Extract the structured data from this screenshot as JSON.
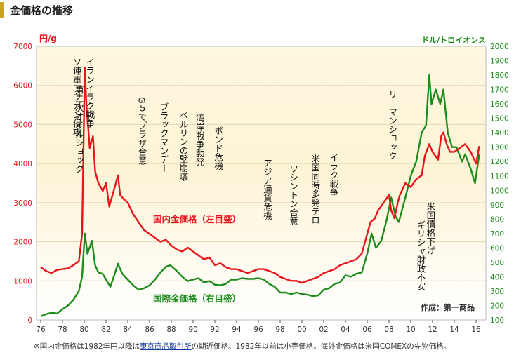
{
  "header": {
    "title": "金価格の推移"
  },
  "footnote": {
    "pre": "※国内金価格は1982年円以降は",
    "link": "東京商品取引所",
    "post": "の期近価格。1982年以前は小売価格。海外金価格は米国COMEXの先物価格。"
  },
  "colors": {
    "domestic": "#e8141c",
    "international": "#1b8c1b",
    "accent": "#c9a227"
  },
  "chart_data": {
    "type": "line",
    "left_axis": {
      "unit": "円/g",
      "min": 0,
      "max": 7000,
      "ticks": [
        "0",
        "1000",
        "2000",
        "3000",
        "4000",
        "5000",
        "6000",
        "7000"
      ]
    },
    "right_axis": {
      "unit": "ドル/トロイオンス",
      "min": 100,
      "max": 2000,
      "ticks": [
        "100",
        "200",
        "300",
        "400",
        "500",
        "600",
        "700",
        "800",
        "900",
        "1000",
        "1100",
        "1200",
        "1300",
        "1400",
        "1500",
        "1600",
        "1700",
        "1800",
        "1900",
        "2000"
      ]
    },
    "x_ticks": [
      "76",
      "78",
      "80",
      "82",
      "84",
      "86",
      "88",
      "90",
      "92",
      "94",
      "96",
      "98",
      "00",
      "02",
      "04",
      "06",
      "08",
      "10",
      "12",
      "14",
      "16"
    ],
    "series": [
      {
        "name": "国内金価格（左目盛）",
        "axis": "left",
        "color": "#e8141c",
        "x": [
          1976.0,
          1976.5,
          1977.0,
          1977.5,
          1978.0,
          1978.5,
          1979.0,
          1979.5,
          1979.8,
          1980.05,
          1980.2,
          1980.5,
          1980.8,
          1981.0,
          1981.3,
          1981.7,
          1982.0,
          1982.3,
          1982.6,
          1982.9,
          1983.1,
          1983.3,
          1983.6,
          1984.0,
          1984.5,
          1985.0,
          1985.5,
          1986.0,
          1986.5,
          1987.0,
          1987.5,
          1988.0,
          1988.5,
          1989.0,
          1989.5,
          1990.0,
          1990.5,
          1991.0,
          1991.5,
          1992.0,
          1992.5,
          1993.0,
          1993.5,
          1994.0,
          1994.5,
          1995.0,
          1995.5,
          1996.0,
          1996.5,
          1997.0,
          1997.5,
          1998.0,
          1998.5,
          1999.0,
          1999.5,
          2000.0,
          2000.5,
          2001.0,
          2001.5,
          2002.0,
          2002.5,
          2003.0,
          2003.5,
          2004.0,
          2004.5,
          2005.0,
          2005.5,
          2006.0,
          2006.3,
          2006.7,
          2007.0,
          2007.5,
          2008.0,
          2008.2,
          2008.5,
          2008.8,
          2009.0,
          2009.5,
          2010.0,
          2010.5,
          2011.0,
          2011.3,
          2011.7,
          2012.0,
          2012.5,
          2012.8,
          2013.0,
          2013.3,
          2013.6,
          2014.0,
          2014.5,
          2015.0,
          2015.5,
          2016.0,
          2016.3
        ],
        "values": [
          1350,
          1250,
          1200,
          1280,
          1300,
          1320,
          1400,
          1500,
          2200,
          6450,
          5500,
          4400,
          4700,
          3800,
          3500,
          3300,
          3500,
          2900,
          3200,
          3500,
          3700,
          3200,
          3100,
          3000,
          2700,
          2500,
          2300,
          2200,
          2100,
          2000,
          2050,
          1900,
          1800,
          1750,
          1850,
          1750,
          1650,
          1550,
          1600,
          1400,
          1450,
          1350,
          1300,
          1300,
          1250,
          1200,
          1250,
          1300,
          1300,
          1250,
          1200,
          1100,
          1050,
          1000,
          1000,
          950,
          1000,
          1050,
          1100,
          1200,
          1250,
          1300,
          1400,
          1450,
          1500,
          1550,
          1700,
          2200,
          2500,
          2600,
          2800,
          3000,
          3200,
          2800,
          2600,
          3000,
          3200,
          3500,
          3400,
          3600,
          3700,
          4200,
          4500,
          4300,
          4100,
          4700,
          4800,
          4500,
          4300,
          4300,
          4400,
          4500,
          4300,
          4000,
          4450
        ]
      },
      {
        "name": "国際金価格（右目盛）",
        "axis": "right",
        "color": "#1b8c1b",
        "x": [
          1976.0,
          1976.5,
          1977.0,
          1977.5,
          1978.0,
          1978.5,
          1979.0,
          1979.5,
          1979.8,
          1980.05,
          1980.3,
          1980.7,
          1981.0,
          1981.3,
          1981.7,
          1982.0,
          1982.4,
          1982.8,
          1983.1,
          1983.5,
          1984.0,
          1984.5,
          1985.0,
          1985.5,
          1986.0,
          1986.5,
          1987.0,
          1987.5,
          1987.9,
          1988.5,
          1989.0,
          1989.5,
          1990.0,
          1990.5,
          1991.0,
          1991.5,
          1992.0,
          1992.5,
          1993.0,
          1993.5,
          1994.0,
          1994.5,
          1995.0,
          1995.5,
          1996.0,
          1996.5,
          1997.0,
          1997.5,
          1998.0,
          1998.5,
          1999.0,
          1999.5,
          2000.0,
          2000.5,
          2001.0,
          2001.5,
          2002.0,
          2002.5,
          2003.0,
          2003.5,
          2004.0,
          2004.5,
          2005.0,
          2005.5,
          2006.0,
          2006.4,
          2006.8,
          2007.3,
          2007.8,
          2008.2,
          2008.6,
          2008.9,
          2009.5,
          2010.0,
          2010.5,
          2011.0,
          2011.4,
          2011.7,
          2011.9,
          2012.3,
          2012.7,
          2013.0,
          2013.4,
          2013.8,
          2014.2,
          2014.7,
          2015.0,
          2015.5,
          2015.9,
          2016.3
        ],
        "values": [
          125,
          140,
          150,
          145,
          175,
          200,
          240,
          300,
          400,
          700,
          560,
          650,
          480,
          430,
          420,
          380,
          330,
          420,
          490,
          420,
          380,
          340,
          310,
          320,
          340,
          380,
          430,
          470,
          480,
          440,
          400,
          370,
          380,
          390,
          360,
          370,
          345,
          340,
          350,
          380,
          380,
          390,
          385,
          385,
          390,
          380,
          350,
          330,
          290,
          290,
          280,
          290,
          280,
          275,
          265,
          270,
          310,
          320,
          350,
          360,
          410,
          400,
          420,
          430,
          560,
          700,
          600,
          650,
          800,
          950,
          820,
          780,
          950,
          1100,
          1200,
          1400,
          1450,
          1800,
          1600,
          1700,
          1600,
          1700,
          1400,
          1300,
          1300,
          1200,
          1250,
          1150,
          1050,
          1250
        ]
      }
    ],
    "annotations": [
      {
        "text": "第二次オイルショック",
        "year": 1979.5
      },
      {
        "text": "ソ連軍アフガン侵攻",
        "year": 1979.3
      },
      {
        "text": "イランイラク戦争",
        "year": 1980.5
      },
      {
        "text": "G５でプラザ合意",
        "year": 1985.3
      },
      {
        "text": "ブラックマンデー",
        "year": 1987.3
      },
      {
        "text": "ベルリンの壁崩壊",
        "year": 1989.1
      },
      {
        "text": "湾岸戦争勃発",
        "year": 1990.6
      },
      {
        "text": "ポンド危機",
        "year": 1992.3
      },
      {
        "text": "アジア通貨危機",
        "year": 1996.8
      },
      {
        "text": "ワシントン合意",
        "year": 1999.2
      },
      {
        "text": "米国同時多発テロ",
        "year": 2001.2
      },
      {
        "text": "イラク戦争",
        "year": 2002.9
      },
      {
        "text": "リーマンショック",
        "year": 2008.3
      },
      {
        "text": "米国債格下げ",
        "year": 2011.8
      },
      {
        "text": "ギリシャ財政不安",
        "year": 2010.9
      }
    ],
    "labels": {
      "domestic": "国内金価格（左目盛）",
      "international": "国際金価格（右目盛）",
      "source": "作成：第一商品"
    }
  }
}
